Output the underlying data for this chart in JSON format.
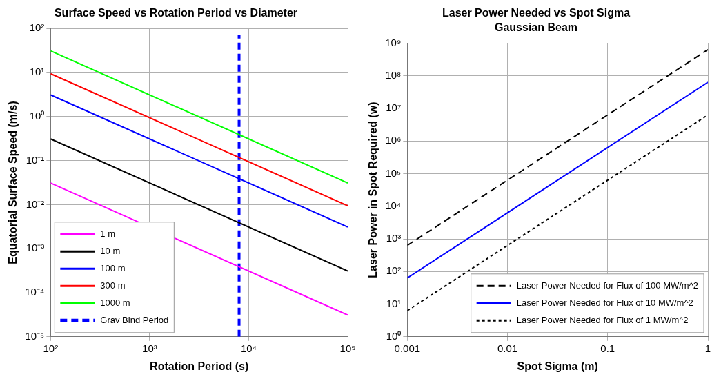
{
  "chart_data": [
    {
      "type": "line",
      "title": "Surface Speed vs Rotation Period vs Diameter",
      "xlabel": "Rotation Period (s)",
      "ylabel": "Equatorial Surface Speed (m/s)",
      "log": "xy",
      "grid": true,
      "legend": "bottom left",
      "marker": "none",
      "xlim": [
        100,
        100000
      ],
      "xticks": [
        {
          "value": 100,
          "label": "10²"
        },
        {
          "value": 1000,
          "label": "10³"
        },
        {
          "value": 10000,
          "label": "10⁴"
        },
        {
          "value": 100000,
          "label": "10⁵"
        }
      ],
      "ylim": [
        1e-05,
        100
      ],
      "yticks": [
        {
          "value": 1e-05,
          "label": "10⁻⁵"
        },
        {
          "value": 0.0001,
          "label": "10⁻⁴"
        },
        {
          "value": 0.001,
          "label": "10⁻³"
        },
        {
          "value": 0.01,
          "label": "10⁻²"
        },
        {
          "value": 0.1,
          "label": "10⁻¹"
        },
        {
          "value": 1,
          "label": "10⁰"
        },
        {
          "value": 10,
          "label": "10¹"
        },
        {
          "value": 100,
          "label": "10²"
        }
      ],
      "series": [
        {
          "name": "1 m",
          "color": "#ff00ff",
          "x": [
            100,
            100000
          ],
          "values": [
            0.031,
            3.1e-05
          ],
          "line_style": "solid"
        },
        {
          "name": "10 m",
          "color": "#000000",
          "x": [
            100,
            100000
          ],
          "values": [
            0.31,
            0.00031
          ],
          "line_style": "solid"
        },
        {
          "name": "100 m",
          "color": "#0000ff",
          "x": [
            100,
            100000
          ],
          "values": [
            3.1,
            0.0031
          ],
          "line_style": "solid"
        },
        {
          "name": "300 m",
          "color": "#ff0000",
          "x": [
            100,
            100000
          ],
          "values": [
            9.4,
            0.0094
          ],
          "line_style": "solid"
        },
        {
          "name": "1000 m",
          "color": "#00ff00",
          "x": [
            100,
            100000
          ],
          "values": [
            31,
            0.031
          ],
          "line_style": "solid"
        },
        {
          "name": "Grav Bind Period",
          "color": "#0000ff",
          "x": [
            8000,
            8000
          ],
          "values": [
            1e-05,
            70
          ],
          "line_style": "dashed"
        }
      ]
    },
    {
      "type": "line",
      "title": "Laser Power Needed vs Spot Sigma",
      "subtitle": "Gaussian Beam",
      "xlabel": "Spot Sigma (m)",
      "ylabel": "Laser Power in Spot Required (w)",
      "log": "xy",
      "grid": true,
      "legend": "bottom right",
      "marker": "none",
      "xlim": [
        0.001,
        1
      ],
      "xticks": [
        0.001,
        0.01,
        0.1,
        1
      ],
      "ylim": [
        1,
        1000000000
      ],
      "yticks": [
        {
          "value": 1,
          "label": "10⁰"
        },
        {
          "value": 10,
          "label": "10¹"
        },
        {
          "value": 100,
          "label": "10²"
        },
        {
          "value": 1000,
          "label": "10³"
        },
        {
          "value": 10000,
          "label": "10⁴"
        },
        {
          "value": 100000,
          "label": "10⁵"
        },
        {
          "value": 1000000,
          "label": "10⁶"
        },
        {
          "value": 10000000,
          "label": "10⁷"
        },
        {
          "value": 100000000,
          "label": "10⁸"
        },
        {
          "value": 1000000000,
          "label": "10⁹"
        }
      ],
      "series": [
        {
          "name": "Laser Power Needed for Flux of 100 MW/m^2",
          "color": "#000000",
          "x": [
            0.001,
            1
          ],
          "values": [
            630,
            630000000
          ],
          "line_style": "dashed"
        },
        {
          "name": "Laser Power Needed for Flux of 10 MW/m^2",
          "color": "#0000ff",
          "x": [
            0.001,
            1
          ],
          "values": [
            63,
            63000000
          ],
          "line_style": "solid"
        },
        {
          "name": "Laser Power Needed for Flux of 1 MW/m^2",
          "color": "#000000",
          "x": [
            0.001,
            1
          ],
          "values": [
            6.3,
            6300000
          ],
          "line_style": "dotted"
        }
      ]
    }
  ]
}
